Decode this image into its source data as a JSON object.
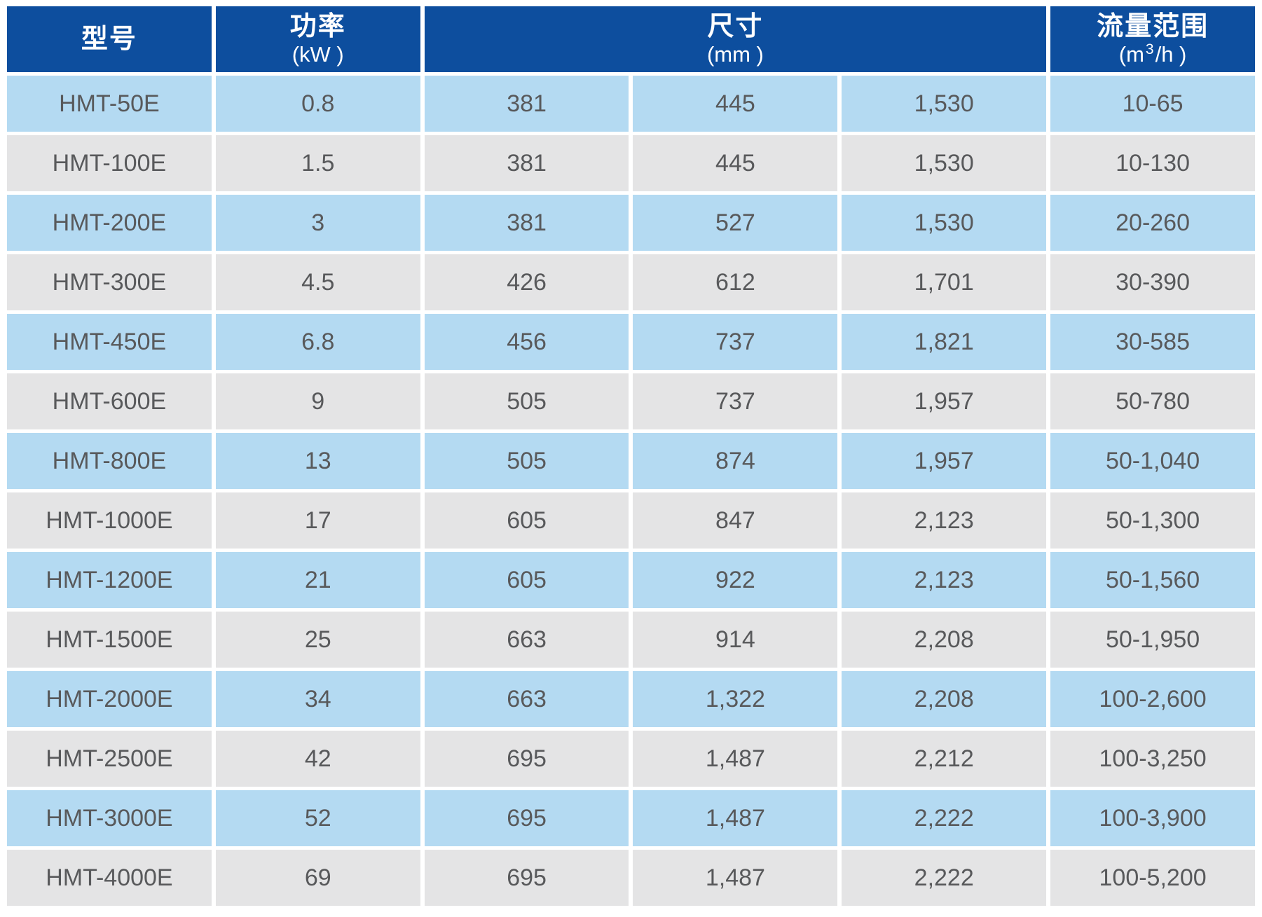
{
  "colors": {
    "header_bg": "#0D4E9E",
    "header_text": "#FFFFFF",
    "row_blue": "#B4DAF2",
    "row_gray": "#E4E4E5",
    "cell_text": "#58595B"
  },
  "table": {
    "columns": {
      "model": {
        "title": "型号"
      },
      "power": {
        "title": "功率",
        "unit": "(kW )"
      },
      "size": {
        "title": "尺寸",
        "unit": "(mm )"
      },
      "flow": {
        "title": "流量范围",
        "unit_prefix": "(m",
        "unit_sup": "3",
        "unit_suffix": "/h )"
      }
    },
    "rows": [
      {
        "model": "HMT-50E",
        "power": "0.8",
        "dims": [
          "381",
          "445",
          "1,530"
        ],
        "flow": "10-65"
      },
      {
        "model": "HMT-100E",
        "power": "1.5",
        "dims": [
          "381",
          "445",
          "1,530"
        ],
        "flow": "10-130"
      },
      {
        "model": "HMT-200E",
        "power": "3",
        "dims": [
          "381",
          "527",
          "1,530"
        ],
        "flow": "20-260"
      },
      {
        "model": "HMT-300E",
        "power": "4.5",
        "dims": [
          "426",
          "612",
          "1,701"
        ],
        "flow": "30-390"
      },
      {
        "model": "HMT-450E",
        "power": "6.8",
        "dims": [
          "456",
          "737",
          "1,821"
        ],
        "flow": "30-585"
      },
      {
        "model": "HMT-600E",
        "power": "9",
        "dims": [
          "505",
          "737",
          "1,957"
        ],
        "flow": "50-780"
      },
      {
        "model": "HMT-800E",
        "power": "13",
        "dims": [
          "505",
          "874",
          "1,957"
        ],
        "flow": "50-1,040"
      },
      {
        "model": "HMT-1000E",
        "power": "17",
        "dims": [
          "605",
          "847",
          "2,123"
        ],
        "flow": "50-1,300"
      },
      {
        "model": "HMT-1200E",
        "power": "21",
        "dims": [
          "605",
          "922",
          "2,123"
        ],
        "flow": "50-1,560"
      },
      {
        "model": "HMT-1500E",
        "power": "25",
        "dims": [
          "663",
          "914",
          "2,208"
        ],
        "flow": "50-1,950"
      },
      {
        "model": "HMT-2000E",
        "power": "34",
        "dims": [
          "663",
          "1,322",
          "2,208"
        ],
        "flow": "100-2,600"
      },
      {
        "model": "HMT-2500E",
        "power": "42",
        "dims": [
          "695",
          "1,487",
          "2,212"
        ],
        "flow": "100-3,250"
      },
      {
        "model": "HMT-3000E",
        "power": "52",
        "dims": [
          "695",
          "1,487",
          "2,222"
        ],
        "flow": "100-3,900"
      },
      {
        "model": "HMT-4000E",
        "power": "69",
        "dims": [
          "695",
          "1,487",
          "2,222"
        ],
        "flow": "100-5,200"
      }
    ]
  }
}
